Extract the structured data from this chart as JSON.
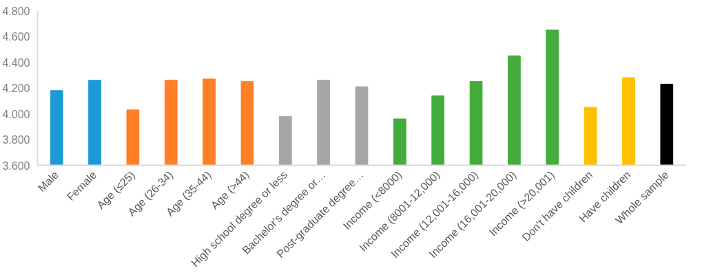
{
  "chart_data": {
    "type": "bar",
    "categories": [
      "Male",
      "Female",
      "Age (≤25)",
      "Age (26-34)",
      "Age (35-44)",
      "Age (>44)",
      "High school degree or less",
      "Bachelor's degree or…",
      "Post-graduate degree…",
      "Income (<8000)",
      "Income (8001-12,000)",
      "Income (12,001-16,000)",
      "Income (16,001-20,000)",
      "Income (>20,001)",
      "Don't have children",
      "Have children",
      "Whole sample"
    ],
    "values": [
      4.18,
      4.26,
      4.03,
      4.26,
      4.27,
      4.25,
      3.98,
      4.26,
      4.21,
      3.96,
      4.14,
      4.25,
      4.45,
      4.65,
      4.05,
      4.28,
      4.23
    ],
    "colors": [
      "#1b9ad6",
      "#1b9ad6",
      "#ff7f27",
      "#ff7f27",
      "#ff7f27",
      "#ff7f27",
      "#a6a6a6",
      "#a6a6a6",
      "#a6a6a6",
      "#43ac3b",
      "#43ac3b",
      "#43ac3b",
      "#43ac3b",
      "#43ac3b",
      "#ffc000",
      "#ffc000",
      "#000000"
    ],
    "ylim": [
      3.6,
      4.8
    ],
    "yticks": [
      {
        "value": 3.6,
        "label": "3.600"
      },
      {
        "value": 3.8,
        "label": "3.800"
      },
      {
        "value": 4.0,
        "label": "4.000"
      },
      {
        "value": 4.2,
        "label": "4.200"
      },
      {
        "value": 4.4,
        "label": "4.400"
      },
      {
        "value": 4.6,
        "label": "4.600"
      },
      {
        "value": 4.8,
        "label": "4.800"
      }
    ],
    "grid": false
  }
}
